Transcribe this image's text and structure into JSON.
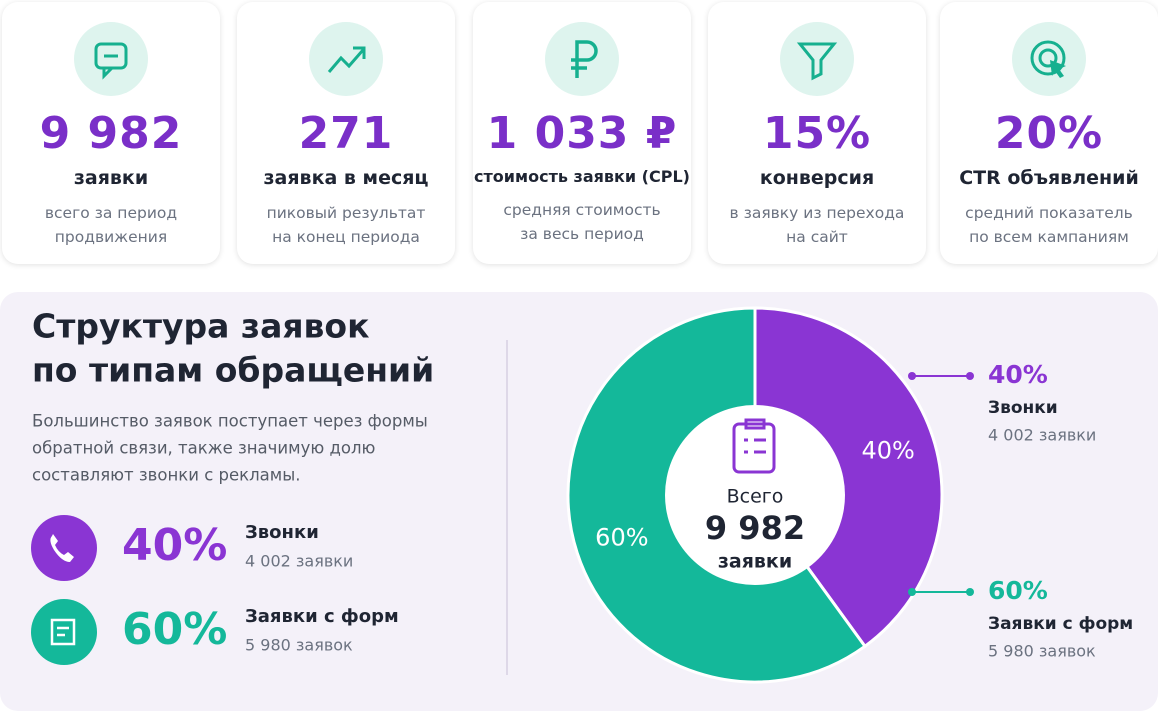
{
  "kpis": [
    {
      "value": "9 982",
      "label": "заявки",
      "desc": [
        "всего за период",
        "продвижения"
      ]
    },
    {
      "value": "271",
      "label": "заявка в месяц",
      "desc": [
        "пиковый результат",
        "на конец периода"
      ]
    },
    {
      "value": "1 033 ₽",
      "label": "стоимость заявки (CPL)",
      "desc": [
        "средняя стоимость",
        "за весь период"
      ]
    },
    {
      "value": "15%",
      "label": "конверсия",
      "desc": [
        "в заявку из перехода",
        "на сайт"
      ]
    },
    {
      "value": "20%",
      "label": "CTR объявлений",
      "desc": [
        "средний показатель",
        "по всем кампаниям"
      ]
    }
  ],
  "section": {
    "title": [
      "Структура заявок",
      "по типам обращений"
    ],
    "text": [
      "Большинство заявок поступает через формы",
      "обратной связи, также значимую долю",
      "составляют звонки с рекламы."
    ]
  },
  "chart_data": {
    "type": "pie",
    "donut": true,
    "categories": [
      "Звонки",
      "Заявки с форм"
    ],
    "values": [
      40,
      60
    ],
    "value_labels": [
      "40%",
      "60%"
    ],
    "counts": [
      "4 002 заявки",
      "5 980 заявок"
    ],
    "colors": [
      "#8a35d3",
      "#14b89a"
    ],
    "center": [
      "Всего",
      "9 982",
      "заявки"
    ]
  }
}
